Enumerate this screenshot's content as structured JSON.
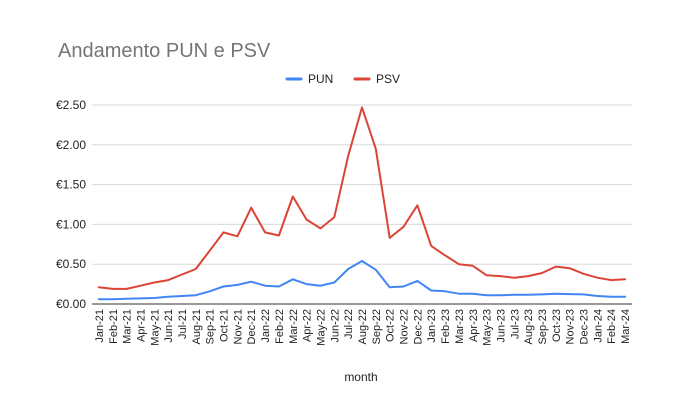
{
  "chart_data": {
    "type": "line",
    "title": "Andamento PUN e PSV",
    "xlabel": "month",
    "ylabel": "",
    "categories": [
      "Jan-21",
      "Feb-21",
      "Mar-21",
      "Apr-21",
      "May-21",
      "Jun-21",
      "Jul-21",
      "Aug-21",
      "Sep-21",
      "Oct-21",
      "Nov-21",
      "Dec-21",
      "Jan-22",
      "Feb-22",
      "Mar-22",
      "Apr-22",
      "May-22",
      "Jun-22",
      "Jul-22",
      "Aug-22",
      "Sep-22",
      "Oct-22",
      "Nov-22",
      "Dec-22",
      "Jan-23",
      "Feb-23",
      "Mar-23",
      "Apr-23",
      "May-23",
      "Jun-23",
      "Jul-23",
      "Aug-23",
      "Sep-23",
      "Oct-23",
      "Nov-23",
      "Dec-23",
      "Jan-24",
      "Feb-24",
      "Mar-24"
    ],
    "yticks": [
      "€0.00",
      "€0.50",
      "€1.00",
      "€1.50",
      "€2.00",
      "€2.50"
    ],
    "ylim": [
      0,
      2.5
    ],
    "grid": true,
    "legend_position": "top",
    "series": [
      {
        "name": "PUN",
        "color": "#4285f4",
        "values": [
          0.06,
          0.06,
          0.065,
          0.07,
          0.075,
          0.09,
          0.1,
          0.11,
          0.16,
          0.22,
          0.24,
          0.28,
          0.23,
          0.22,
          0.31,
          0.25,
          0.23,
          0.27,
          0.44,
          0.54,
          0.43,
          0.21,
          0.22,
          0.29,
          0.17,
          0.16,
          0.13,
          0.13,
          0.11,
          0.11,
          0.115,
          0.115,
          0.12,
          0.13,
          0.125,
          0.12,
          0.1,
          0.09,
          0.09
        ]
      },
      {
        "name": "PSV",
        "color": "#db4437",
        "values": [
          0.21,
          0.19,
          0.19,
          0.23,
          0.27,
          0.3,
          0.37,
          0.44,
          0.67,
          0.9,
          0.85,
          1.21,
          0.9,
          0.86,
          1.35,
          1.06,
          0.95,
          1.09,
          1.86,
          2.47,
          1.95,
          0.83,
          0.97,
          1.24,
          0.73,
          0.61,
          0.5,
          0.48,
          0.36,
          0.35,
          0.33,
          0.35,
          0.39,
          0.47,
          0.45,
          0.38,
          0.33,
          0.3,
          0.31
        ]
      }
    ]
  }
}
